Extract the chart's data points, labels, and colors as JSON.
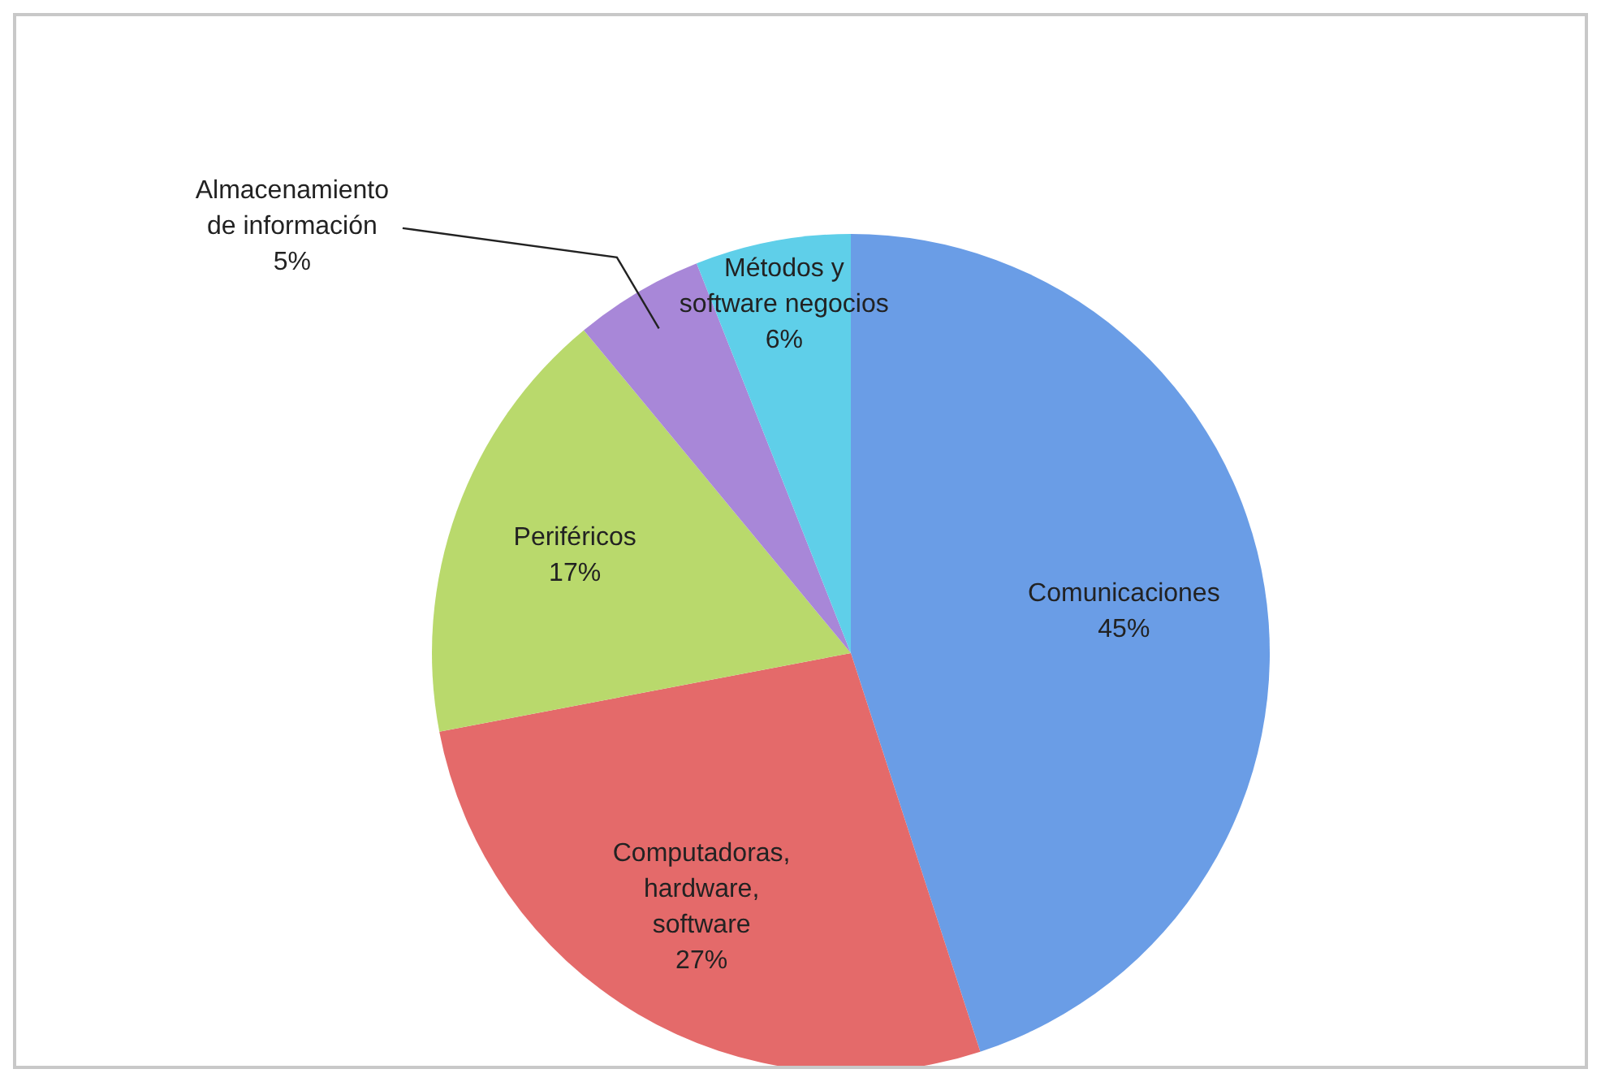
{
  "chart_data": {
    "type": "pie",
    "categories": [
      "Comunicaciones",
      "Computadoras, hardware, software",
      "Periféricos",
      "Almacenamiento de información",
      "Métodos y software negocios"
    ],
    "values": [
      45,
      27,
      17,
      5,
      6
    ],
    "colors": [
      "#6a9de6",
      "#e46a6a",
      "#b9d96c",
      "#a887d8",
      "#5fcfe9"
    ],
    "value_labels": [
      "45%",
      "27%",
      "17%",
      "5%",
      "6%"
    ]
  }
}
